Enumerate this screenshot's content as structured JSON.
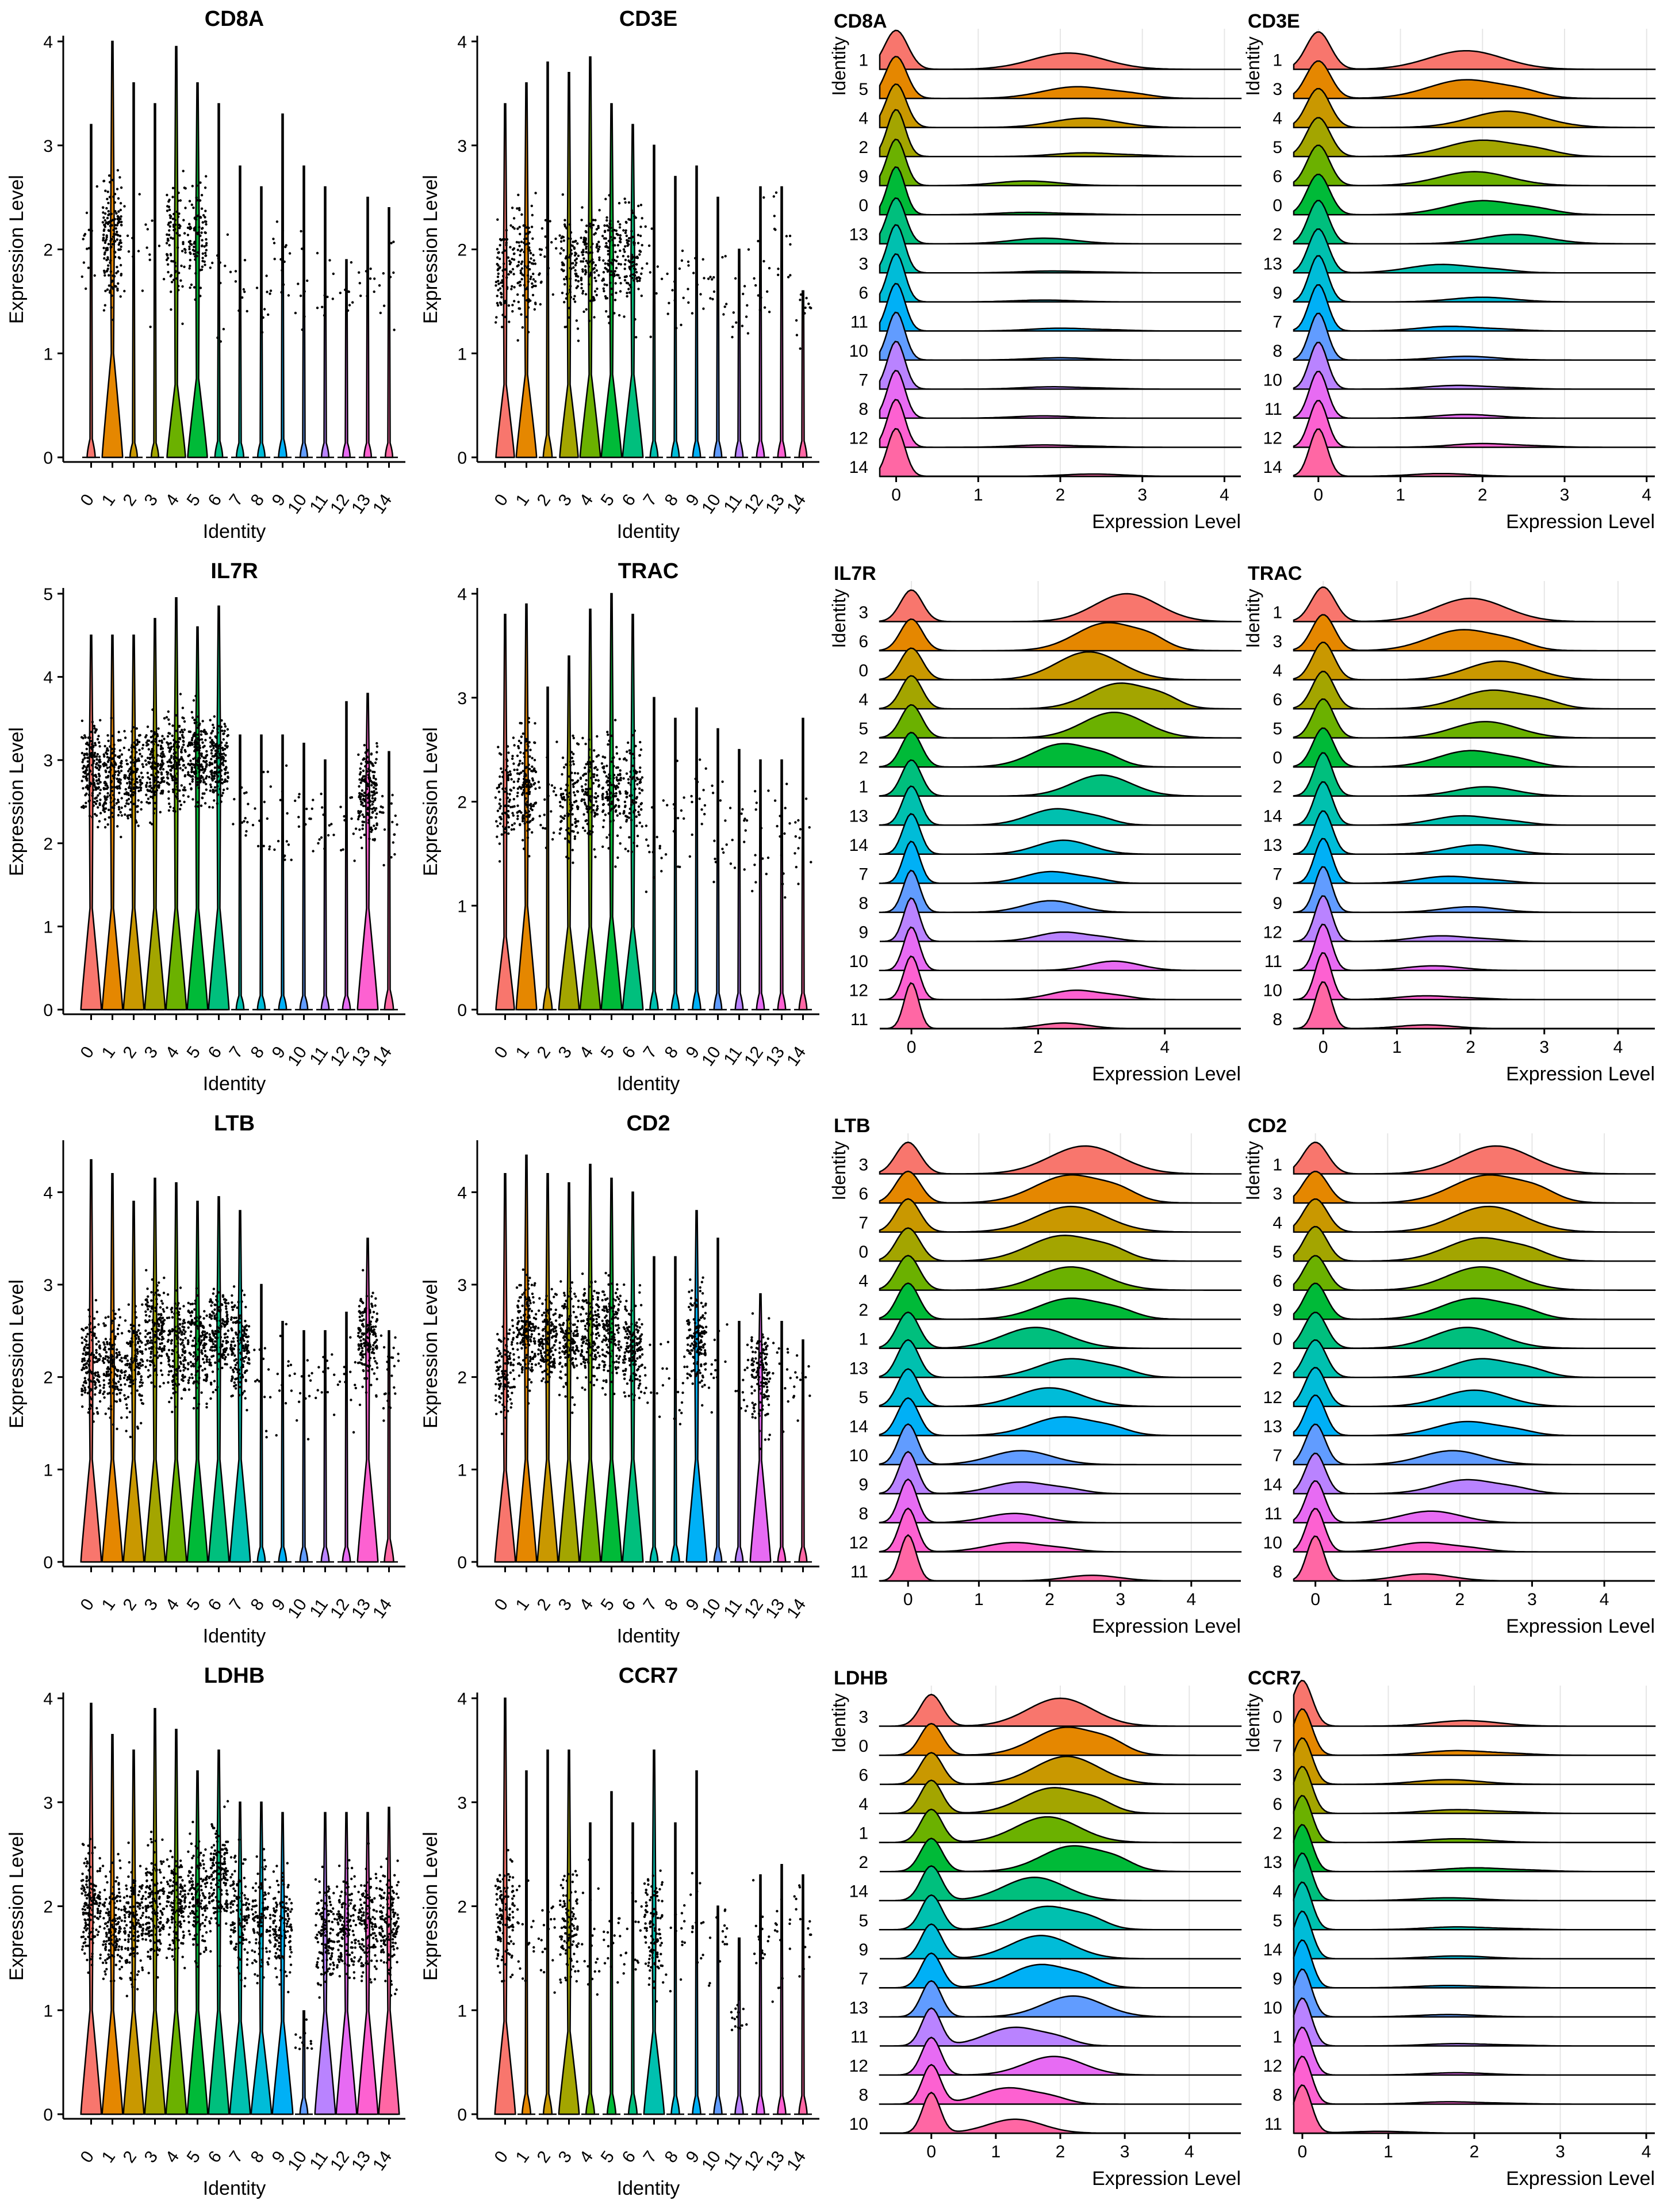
{
  "palette": [
    "#F8766D",
    "#E58700",
    "#C99800",
    "#A3A500",
    "#6BB100",
    "#00BA38",
    "#00BF7D",
    "#00C0AF",
    "#00BCD8",
    "#00B0F6",
    "#619CFF",
    "#B983FF",
    "#E76BF3",
    "#FD61D1",
    "#FF67A4"
  ],
  "labels": {
    "violin_x": "Identity",
    "violin_y": "Expression Level",
    "ridge_x": "Expression Level",
    "ridge_y": "Identity"
  },
  "chart_data": [
    {
      "type": "violin",
      "title": "CD8A",
      "categories": [
        "0",
        "1",
        "2",
        "3",
        "4",
        "5",
        "6",
        "7",
        "8",
        "9",
        "10",
        "11",
        "12",
        "13",
        "14"
      ],
      "ylim": [
        0,
        4
      ],
      "yticks": [
        0,
        1,
        2,
        3,
        4
      ],
      "positive_fraction": [
        0.03,
        0.55,
        0.01,
        0.01,
        0.3,
        0.33,
        0.02,
        0.01,
        0.01,
        0.03,
        0.01,
        0.01,
        0.01,
        0.01,
        0.01
      ],
      "median_positive": [
        2.0,
        2.1,
        2.0,
        2.0,
        2.1,
        2.1,
        1.6,
        1.6,
        1.6,
        1.9,
        1.7,
        1.7,
        1.6,
        1.7,
        1.7
      ],
      "max": [
        3.2,
        4.0,
        3.6,
        3.4,
        3.95,
        3.6,
        3.4,
        2.8,
        2.6,
        3.3,
        2.8,
        2.6,
        1.9,
        2.5,
        2.4
      ]
    },
    {
      "type": "violin",
      "title": "CD3E",
      "categories": [
        "0",
        "1",
        "2",
        "3",
        "4",
        "5",
        "6",
        "7",
        "8",
        "9",
        "10",
        "11",
        "12",
        "13",
        "14"
      ],
      "ylim": [
        0,
        4
      ],
      "yticks": [
        0,
        1,
        2,
        3,
        4
      ],
      "positive_fraction": [
        0.3,
        0.35,
        0.05,
        0.3,
        0.35,
        0.35,
        0.35,
        0.02,
        0.02,
        0.02,
        0.02,
        0.02,
        0.02,
        0.02,
        0.02
      ],
      "median_positive": [
        1.8,
        1.85,
        1.8,
        1.8,
        1.9,
        1.9,
        1.9,
        1.7,
        1.6,
        1.8,
        1.7,
        1.6,
        1.8,
        1.9,
        1.6
      ],
      "max": [
        3.4,
        3.6,
        3.8,
        3.7,
        3.85,
        3.4,
        3.2,
        3.0,
        2.7,
        2.8,
        2.5,
        2.0,
        2.6,
        2.6,
        1.6
      ]
    },
    {
      "type": "ridge",
      "title": "CD8A",
      "identities": [
        "1",
        "5",
        "4",
        "2",
        "9",
        "0",
        "13",
        "3",
        "6",
        "11",
        "10",
        "7",
        "8",
        "12",
        "14"
      ],
      "xlim": [
        -0.2,
        4.2
      ],
      "xticks": [
        0,
        1,
        2,
        3,
        4
      ],
      "positive_fraction": [
        0.35,
        0.25,
        0.2,
        0.08,
        0.1,
        0.05,
        0.12,
        0.04,
        0.04,
        0.06,
        0.05,
        0.05,
        0.05,
        0.05,
        0.05
      ],
      "mode_positive": [
        2.1,
        2.2,
        2.3,
        2.3,
        1.6,
        1.6,
        1.8,
        1.9,
        1.8,
        2.0,
        2.0,
        1.9,
        1.8,
        1.8,
        2.4
      ]
    },
    {
      "type": "ridge",
      "title": "CD3E",
      "identities": [
        "1",
        "3",
        "4",
        "5",
        "6",
        "0",
        "2",
        "13",
        "9",
        "7",
        "8",
        "10",
        "11",
        "12",
        "14"
      ],
      "xlim": [
        -0.3,
        4.1
      ],
      "xticks": [
        0,
        1,
        2,
        3,
        4
      ],
      "positive_fraction": [
        0.4,
        0.4,
        0.35,
        0.35,
        0.3,
        0.3,
        0.2,
        0.18,
        0.1,
        0.1,
        0.08,
        0.08,
        0.08,
        0.08,
        0.06
      ],
      "mode_positive": [
        1.8,
        1.8,
        2.3,
        2.0,
        1.9,
        2.0,
        2.4,
        1.5,
        2.0,
        1.6,
        1.8,
        1.7,
        1.8,
        2.0,
        1.5
      ]
    },
    {
      "type": "violin",
      "title": "IL7R",
      "categories": [
        "0",
        "1",
        "2",
        "3",
        "4",
        "5",
        "6",
        "7",
        "8",
        "9",
        "10",
        "11",
        "12",
        "13",
        "14"
      ],
      "ylim": [
        0,
        5
      ],
      "yticks": [
        0,
        1,
        2,
        3,
        4,
        5
      ],
      "positive_fraction": [
        0.6,
        0.55,
        0.5,
        0.55,
        0.55,
        0.6,
        0.55,
        0.02,
        0.02,
        0.02,
        0.02,
        0.02,
        0.02,
        0.6,
        0.05
      ],
      "median_positive": [
        2.9,
        2.8,
        2.8,
        2.9,
        3.0,
        3.0,
        3.0,
        2.2,
        2.2,
        2.2,
        2.4,
        2.2,
        2.2,
        2.6,
        2.2
      ],
      "max": [
        4.5,
        4.5,
        4.5,
        4.7,
        4.95,
        4.6,
        4.85,
        3.3,
        3.3,
        3.3,
        3.2,
        3.0,
        3.7,
        3.8,
        3.1
      ]
    },
    {
      "type": "violin",
      "title": "TRAC",
      "categories": [
        "0",
        "1",
        "2",
        "3",
        "4",
        "5",
        "6",
        "7",
        "8",
        "9",
        "10",
        "11",
        "12",
        "13",
        "14"
      ],
      "ylim": [
        0,
        4
      ],
      "yticks": [
        0,
        1,
        2,
        3,
        4
      ],
      "positive_fraction": [
        0.3,
        0.5,
        0.05,
        0.35,
        0.35,
        0.4,
        0.35,
        0.03,
        0.02,
        0.03,
        0.02,
        0.02,
        0.02,
        0.02,
        0.02
      ],
      "median_positive": [
        2.1,
        2.2,
        2.0,
        2.0,
        2.1,
        2.1,
        2.1,
        1.8,
        1.8,
        2.0,
        1.7,
        1.7,
        1.7,
        1.7,
        1.7
      ],
      "max": [
        3.8,
        3.9,
        3.1,
        3.4,
        3.85,
        4.15,
        3.8,
        3.0,
        2.8,
        2.9,
        2.7,
        2.5,
        2.4,
        2.4,
        2.8
      ]
    },
    {
      "type": "ridge",
      "title": "IL7R",
      "identities": [
        "3",
        "6",
        "0",
        "4",
        "5",
        "2",
        "1",
        "13",
        "14",
        "7",
        "8",
        "9",
        "10",
        "12",
        "11"
      ],
      "xlim": [
        -0.5,
        5.2
      ],
      "xticks": [
        0,
        2,
        4
      ],
      "positive_fraction": [
        0.6,
        0.6,
        0.6,
        0.55,
        0.55,
        0.5,
        0.45,
        0.35,
        0.3,
        0.25,
        0.25,
        0.2,
        0.2,
        0.2,
        0.12
      ],
      "mode_positive": [
        3.4,
        3.1,
        2.8,
        3.3,
        3.2,
        2.4,
        3.0,
        2.3,
        2.4,
        2.2,
        2.2,
        2.4,
        3.2,
        2.6,
        2.4
      ]
    },
    {
      "type": "ridge",
      "title": "TRAC",
      "identities": [
        "1",
        "3",
        "4",
        "6",
        "5",
        "0",
        "2",
        "14",
        "13",
        "7",
        "9",
        "12",
        "11",
        "10",
        "8"
      ],
      "xlim": [
        -0.4,
        4.5
      ],
      "xticks": [
        0,
        1,
        2,
        3,
        4
      ],
      "positive_fraction": [
        0.5,
        0.45,
        0.4,
        0.4,
        0.35,
        0.35,
        0.2,
        0.2,
        0.2,
        0.15,
        0.12,
        0.12,
        0.1,
        0.08,
        0.08
      ],
      "mode_positive": [
        2.0,
        1.9,
        2.4,
        2.3,
        2.2,
        2.0,
        2.2,
        1.9,
        2.1,
        1.7,
        2.0,
        1.6,
        1.5,
        1.4,
        1.4
      ]
    },
    {
      "type": "violin",
      "title": "LTB",
      "categories": [
        "0",
        "1",
        "2",
        "3",
        "4",
        "5",
        "6",
        "7",
        "8",
        "9",
        "10",
        "11",
        "12",
        "13",
        "14"
      ],
      "ylim": [
        0,
        4.5
      ],
      "yticks": [
        0,
        1,
        2,
        3,
        4
      ],
      "positive_fraction": [
        0.55,
        0.5,
        0.5,
        0.55,
        0.5,
        0.5,
        0.55,
        0.55,
        0.02,
        0.02,
        0.02,
        0.02,
        0.02,
        0.6,
        0.06
      ],
      "median_positive": [
        2.1,
        2.1,
        2.1,
        2.5,
        2.3,
        2.3,
        2.5,
        2.3,
        2.0,
        2.0,
        1.9,
        2.0,
        2.0,
        2.4,
        2.0
      ],
      "max": [
        4.35,
        4.2,
        3.9,
        4.15,
        4.1,
        3.9,
        3.95,
        3.8,
        3.0,
        2.6,
        2.5,
        2.5,
        2.7,
        3.5,
        2.5
      ]
    },
    {
      "type": "violin",
      "title": "CD2",
      "categories": [
        "0",
        "1",
        "2",
        "3",
        "4",
        "5",
        "6",
        "7",
        "8",
        "9",
        "10",
        "11",
        "12",
        "13",
        "14"
      ],
      "ylim": [
        0,
        4.5
      ],
      "yticks": [
        0,
        1,
        2,
        3,
        4
      ],
      "positive_fraction": [
        0.4,
        0.6,
        0.5,
        0.5,
        0.55,
        0.5,
        0.5,
        0.02,
        0.03,
        0.5,
        0.02,
        0.02,
        0.45,
        0.02,
        0.02
      ],
      "median_positive": [
        2.1,
        2.5,
        2.4,
        2.4,
        2.5,
        2.5,
        2.3,
        2.0,
        2.0,
        2.4,
        2.0,
        2.0,
        2.0,
        2.0,
        2.0
      ],
      "max": [
        4.2,
        4.4,
        4.2,
        4.1,
        4.3,
        4.15,
        4.0,
        3.3,
        3.3,
        3.8,
        3.5,
        2.6,
        2.9,
        2.6,
        2.4
      ]
    },
    {
      "type": "ridge",
      "title": "LTB",
      "identities": [
        "3",
        "6",
        "7",
        "0",
        "4",
        "2",
        "1",
        "13",
        "5",
        "14",
        "10",
        "9",
        "8",
        "12",
        "11"
      ],
      "xlim": [
        -0.4,
        4.7
      ],
      "xticks": [
        0,
        1,
        2,
        3,
        4
      ],
      "positive_fraction": [
        0.6,
        0.6,
        0.55,
        0.55,
        0.5,
        0.45,
        0.45,
        0.4,
        0.4,
        0.4,
        0.3,
        0.25,
        0.2,
        0.2,
        0.12
      ],
      "mode_positive": [
        2.5,
        2.3,
        2.3,
        2.2,
        2.3,
        2.3,
        1.8,
        2.3,
        2.0,
        2.2,
        1.6,
        1.6,
        1.5,
        1.5,
        2.6
      ]
    },
    {
      "type": "ridge",
      "title": "CD2",
      "identities": [
        "1",
        "3",
        "4",
        "5",
        "6",
        "9",
        "0",
        "2",
        "12",
        "13",
        "7",
        "14",
        "11",
        "10",
        "8"
      ],
      "xlim": [
        -0.3,
        4.7
      ],
      "xticks": [
        0,
        1,
        2,
        3,
        4
      ],
      "positive_fraction": [
        0.6,
        0.6,
        0.55,
        0.5,
        0.5,
        0.45,
        0.45,
        0.4,
        0.35,
        0.3,
        0.3,
        0.3,
        0.25,
        0.2,
        0.15
      ],
      "mode_positive": [
        2.5,
        2.4,
        2.4,
        2.3,
        2.3,
        2.2,
        2.1,
        2.3,
        2.2,
        2.1,
        1.9,
        2.1,
        1.6,
        1.5,
        1.5
      ]
    },
    {
      "type": "violin",
      "title": "LDHB",
      "categories": [
        "0",
        "1",
        "2",
        "3",
        "4",
        "5",
        "6",
        "7",
        "8",
        "9",
        "10",
        "11",
        "12",
        "13",
        "14"
      ],
      "ylim": [
        0,
        4
      ],
      "yticks": [
        0,
        1,
        2,
        3,
        4
      ],
      "positive_fraction": [
        0.55,
        0.5,
        0.5,
        0.55,
        0.5,
        0.5,
        0.55,
        0.4,
        0.35,
        0.4,
        0.02,
        0.45,
        0.45,
        0.45,
        0.5
      ],
      "median_positive": [
        2.0,
        1.8,
        1.8,
        2.0,
        2.0,
        2.1,
        2.3,
        1.9,
        1.9,
        1.8,
        1.0,
        1.7,
        1.8,
        1.8,
        1.8
      ],
      "max": [
        3.95,
        3.65,
        3.5,
        3.9,
        3.7,
        3.3,
        3.5,
        3.0,
        3.0,
        2.9,
        0.8,
        2.9,
        2.9,
        2.9,
        2.95
      ]
    },
    {
      "type": "violin",
      "title": "CCR7",
      "categories": [
        "0",
        "1",
        "2",
        "3",
        "4",
        "5",
        "6",
        "7",
        "8",
        "9",
        "10",
        "11",
        "12",
        "13",
        "14"
      ],
      "ylim": [
        0,
        4
      ],
      "yticks": [
        0,
        1,
        2,
        3,
        4
      ],
      "positive_fraction": [
        0.4,
        0.04,
        0.04,
        0.35,
        0.04,
        0.04,
        0.04,
        0.35,
        0.03,
        0.03,
        0.03,
        0.03,
        0.03,
        0.03,
        0.03
      ],
      "median_positive": [
        1.9,
        1.7,
        1.8,
        1.8,
        1.7,
        1.7,
        1.7,
        1.8,
        1.7,
        1.7,
        1.7,
        1.7,
        1.7,
        1.7,
        1.7
      ],
      "max": [
        4.05,
        3.3,
        3.5,
        3.5,
        2.8,
        3.1,
        2.8,
        3.5,
        2.8,
        3.3,
        2.0,
        1.1,
        2.3,
        2.4,
        2.3
      ]
    },
    {
      "type": "ridge",
      "title": "LDHB",
      "identities": [
        "3",
        "0",
        "6",
        "4",
        "1",
        "2",
        "14",
        "5",
        "9",
        "7",
        "13",
        "11",
        "12",
        "8",
        "10"
      ],
      "xlim": [
        -0.8,
        4.8
      ],
      "xticks": [
        0,
        1,
        2,
        3,
        4
      ],
      "positive_fraction": [
        0.6,
        0.6,
        0.6,
        0.55,
        0.55,
        0.55,
        0.5,
        0.5,
        0.5,
        0.5,
        0.45,
        0.4,
        0.4,
        0.35,
        0.3
      ],
      "mode_positive": [
        2.0,
        2.1,
        2.1,
        1.9,
        1.8,
        2.2,
        1.6,
        1.8,
        1.7,
        1.7,
        2.2,
        1.3,
        1.9,
        1.2,
        1.3
      ]
    },
    {
      "type": "ridge",
      "title": "CCR7",
      "identities": [
        "0",
        "7",
        "3",
        "6",
        "2",
        "13",
        "4",
        "5",
        "14",
        "9",
        "10",
        "1",
        "12",
        "8",
        "11"
      ],
      "xlim": [
        -0.1,
        4.1
      ],
      "xticks": [
        0,
        1,
        2,
        3,
        4
      ],
      "positive_fraction": [
        0.12,
        0.1,
        0.1,
        0.08,
        0.08,
        0.08,
        0.06,
        0.06,
        0.06,
        0.05,
        0.05,
        0.05,
        0.05,
        0.05,
        0.04
      ],
      "mode_positive": [
        1.9,
        1.8,
        1.7,
        1.8,
        1.8,
        2.0,
        1.7,
        1.8,
        1.8,
        1.7,
        1.7,
        1.8,
        1.8,
        1.7,
        0.9
      ]
    }
  ]
}
